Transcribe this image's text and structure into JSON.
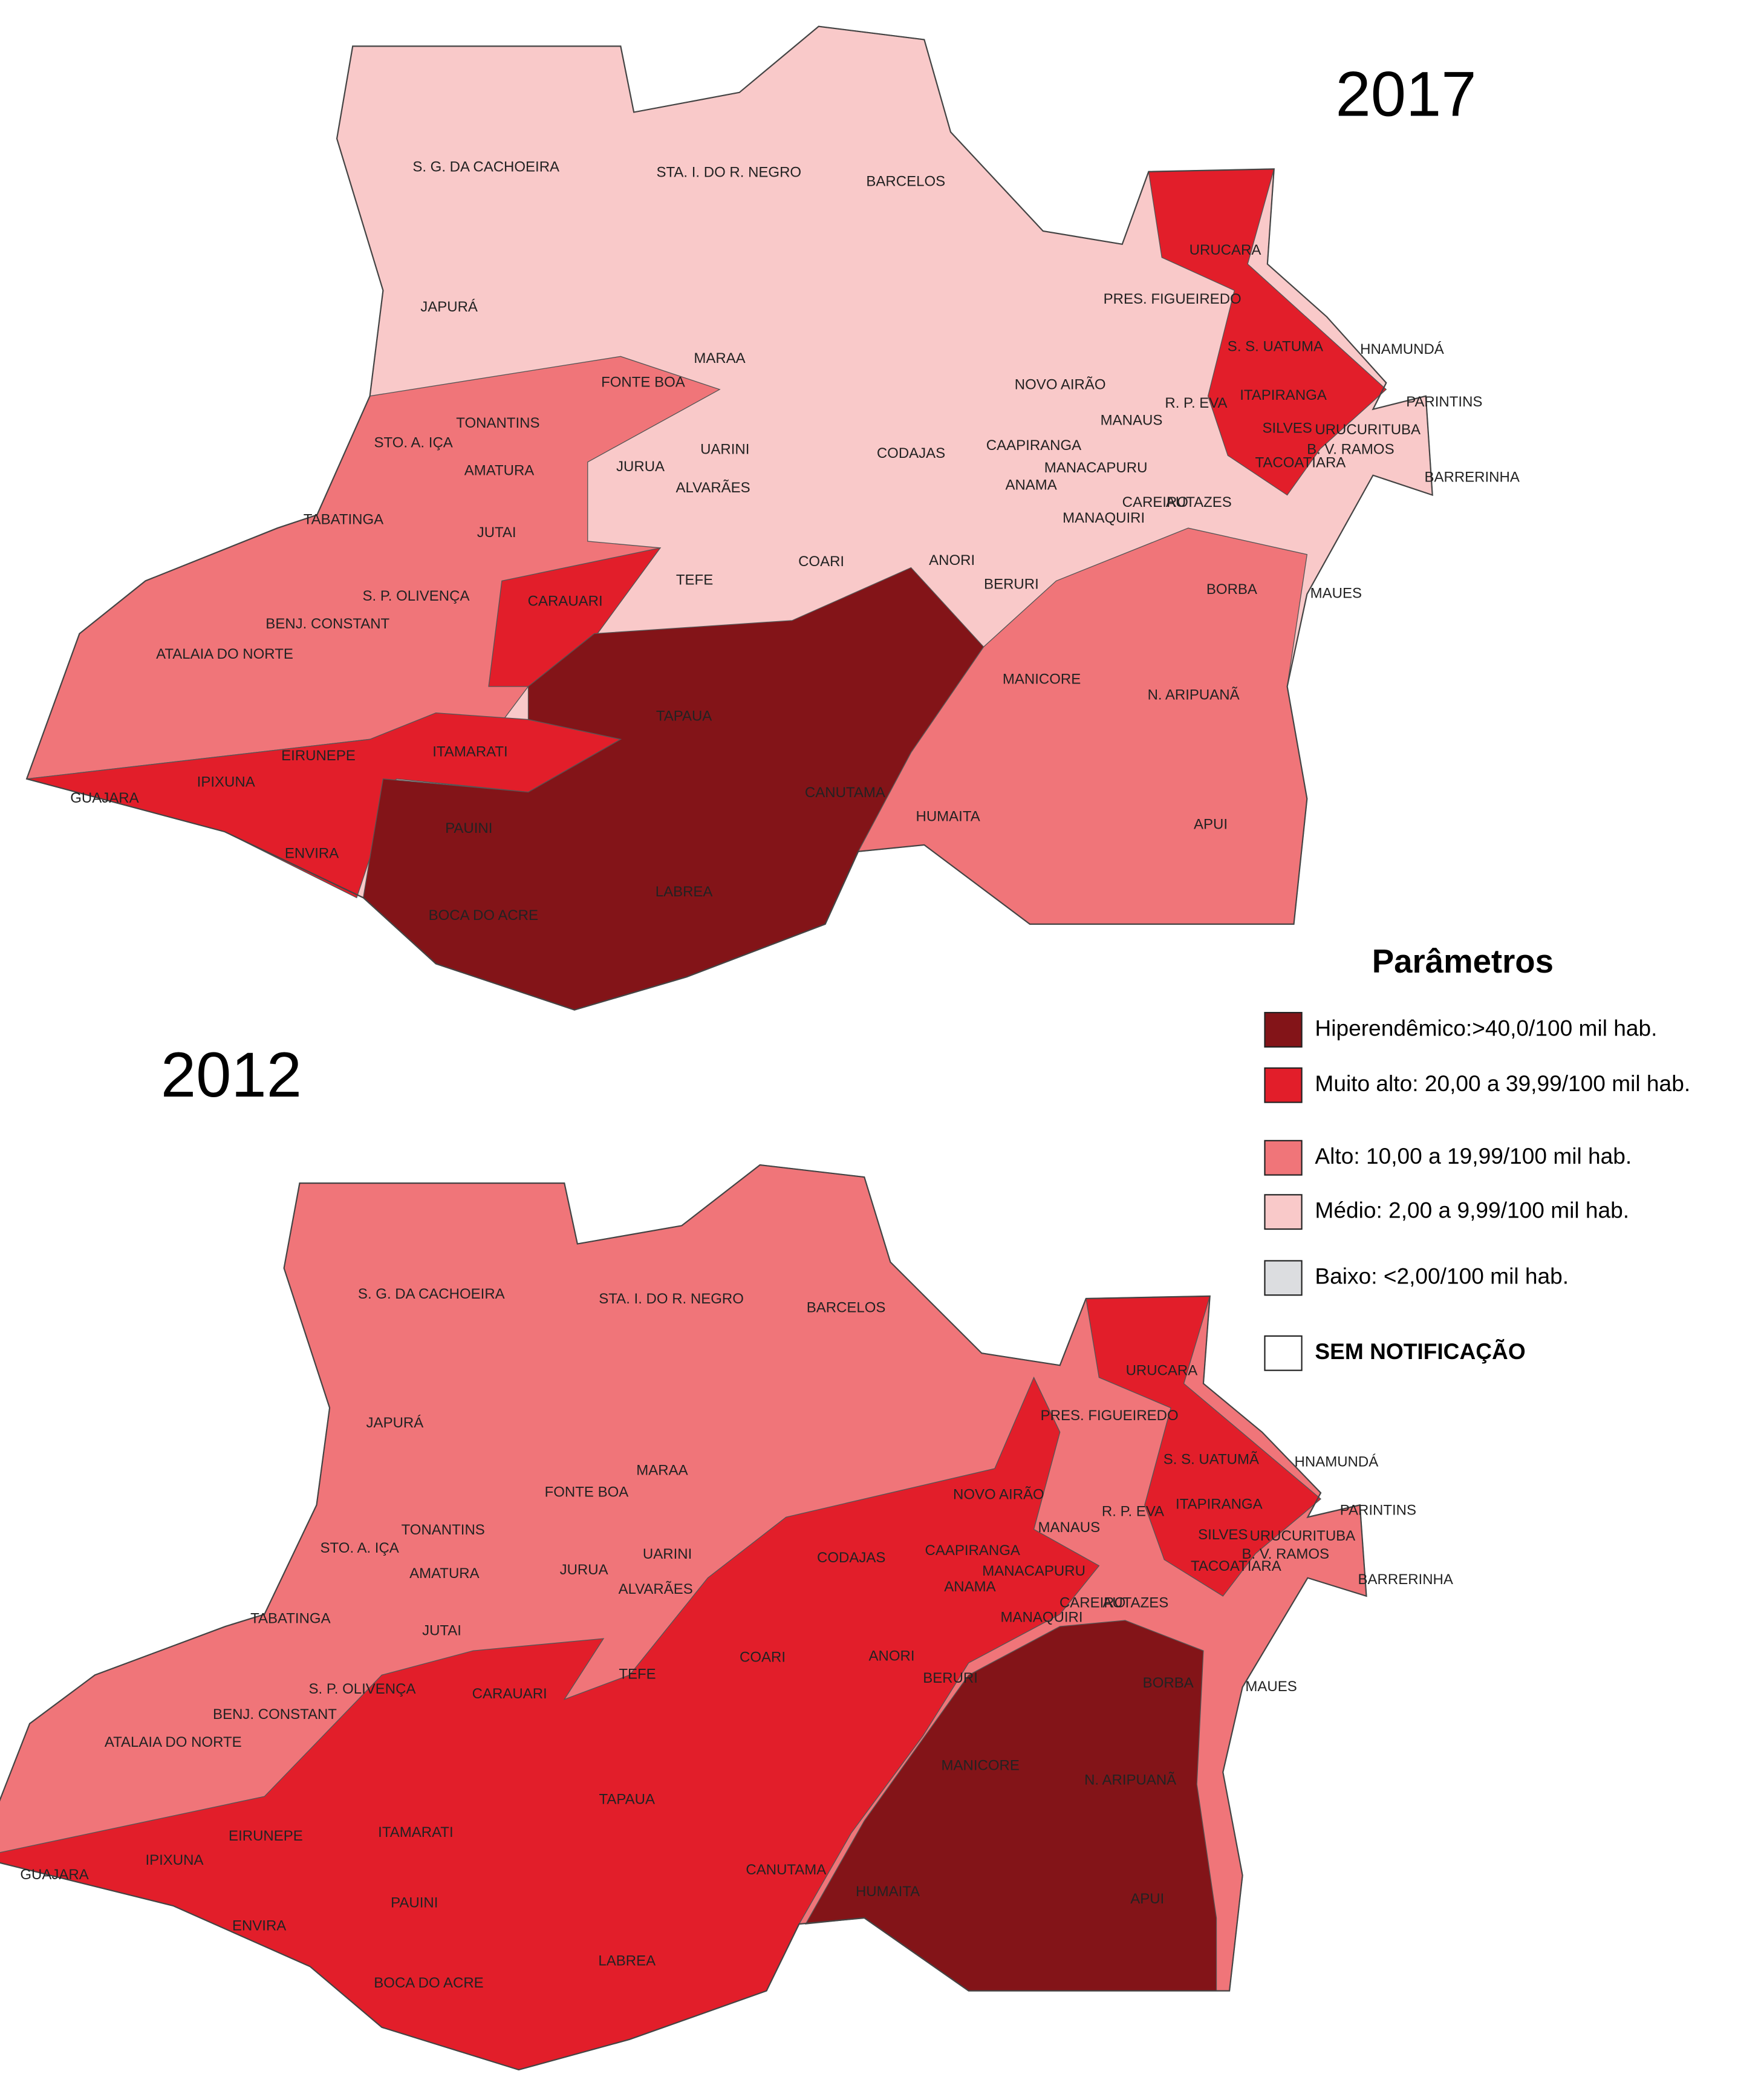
{
  "maps": [
    {
      "year": "2017",
      "labels": [
        "S. G. DA CACHOEIRA",
        "STA. I. DO R. NEGRO",
        "BARCELOS",
        "JAPURÁ",
        "URUCARA",
        "PRES. FIGUEIREDO",
        "S. S. UATUMA",
        "HNAMUNDÁ",
        "MARAA",
        "FONTE BOA",
        "NOVO AIRÃO",
        "R. P. EVA",
        "ITAPIRANGA",
        "PARINTINS",
        "TONANTINS",
        "STO. A. IÇA",
        "MANAUS",
        "SILVES",
        "URUCURITUBA",
        "UARINI",
        "CODAJAS",
        "CAAPIRANGA",
        "B. V. RAMOS",
        "AMATURA",
        "JURUA",
        "MANACAPURU",
        "TACOATIARA",
        "BARRERINHA",
        "ALVARÃES",
        "ANAMA",
        "CAREIRO",
        "AUTAZES",
        "MANAQUIRI",
        "TABATINGA",
        "JUTAI",
        "COARI",
        "ANORI",
        "BERURI",
        "TEFE",
        "BORBA",
        "MAUES",
        "S. P. OLIVENÇA",
        "CARAUARI",
        "BENJ. CONSTANT",
        "ATALAIA DO NORTE",
        "MANICORE",
        "N. ARIPUANÃ",
        "TAPAUA",
        "EIRUNEPE",
        "ITAMARATI",
        "IPIXUNA",
        "GUAJARA",
        "CANUTAMA",
        "HUMAITA",
        "APUI",
        "PAUINI",
        "ENVIRA",
        "LABREA",
        "BOCA DO ACRE"
      ]
    },
    {
      "year": "2012",
      "labels": [
        "S. G. DA CACHOEIRA",
        "STA. I. DO R. NEGRO",
        "BARCELOS",
        "JAPURÁ",
        "URUCARA",
        "PRES. FIGUEIREDO",
        "S. S. UATUMÃ",
        "HNAMUNDÁ",
        "MARAA",
        "FONTE BOA",
        "NOVO AIRÃO",
        "R. P. EVA",
        "ITAPIRANGA",
        "PARINTINS",
        "TONANTINS",
        "STO. A. IÇA",
        "MANAUS",
        "SILVES",
        "URUCURITUBA",
        "UARINI",
        "CODAJAS",
        "CAAPIRANGA",
        "B. V. RAMOS",
        "AMATURA",
        "JURUA",
        "MANACAPURU",
        "TACOATIARA",
        "BARRERINHA",
        "ALVARÃES",
        "ANAMA",
        "CAREIRO",
        "AUTAZES",
        "MANAQUIRI",
        "TABATINGA",
        "JUTAI",
        "COARI",
        "ANORI",
        "BERURI",
        "TEFE",
        "BORBA",
        "MAUES",
        "S. P. OLIVENÇA",
        "CARAUARI",
        "BENJ. CONSTANT",
        "ATALAIA DO NORTE",
        "MANICORE",
        "N. ARIPUANÃ",
        "TAPAUA",
        "EIRUNEPE",
        "ITAMARATI",
        "IPIXUNA",
        "GUAJARA",
        "CANUTAMA",
        "HUMAITA",
        "APUI",
        "PAUINI",
        "ENVIRA",
        "LABREA",
        "BOCA DO ACRE"
      ]
    }
  ],
  "legend": {
    "title": "Parâmetros",
    "items": [
      {
        "label": "Hiperendêmico:>40,0/100 mil hab.",
        "color": "#831418"
      },
      {
        "label": "Muito alto: 20,00 a 39,99/100 mil hab.",
        "color": "#e21e2a"
      },
      {
        "label": "Alto: 10,00 a 19,99/100 mil hab.",
        "color": "#f07579"
      },
      {
        "label": "Médio: 2,00 a 9,99/100 mil hab.",
        "color": "#f9c9c9"
      },
      {
        "label": "Baixo: <2,00/100 mil hab.",
        "color": "#dcdde0"
      },
      {
        "label": "SEM NOTIFICAÇÃO",
        "color": "#ffffff"
      }
    ]
  }
}
